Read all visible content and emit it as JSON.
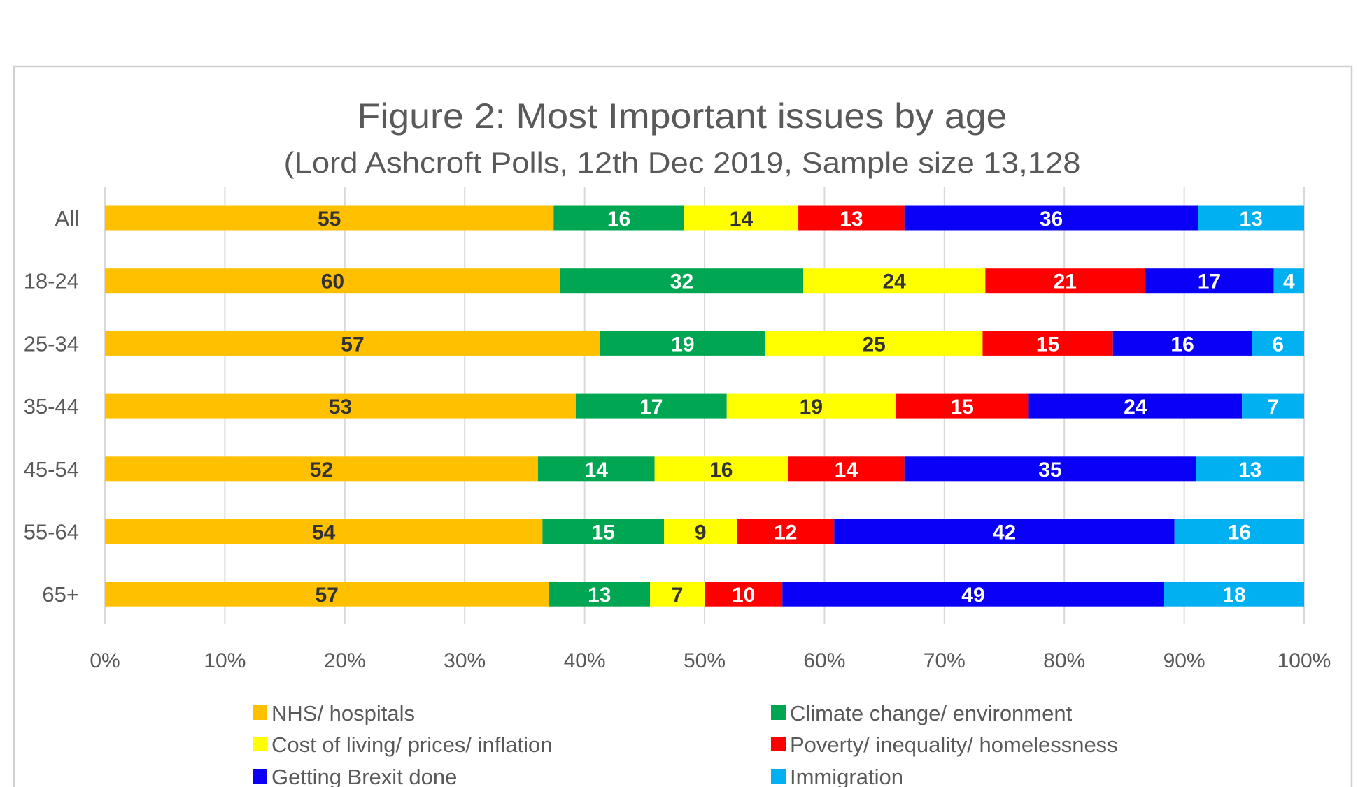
{
  "chart_data": {
    "type": "bar",
    "orientation": "horizontal",
    "stacking": "percent",
    "title": "Figure 2: Most Important issues by age",
    "subtitle": "(Lord Ashcroft Polls, 12th Dec 2019, Sample size 13,128",
    "xlabel": "",
    "ylabel": "",
    "xlim": [
      0,
      100
    ],
    "x_ticks": [
      "0%",
      "10%",
      "20%",
      "30%",
      "40%",
      "50%",
      "60%",
      "70%",
      "80%",
      "90%",
      "100%"
    ],
    "grid": true,
    "legend_position": "bottom",
    "categories": [
      "All",
      "18-24",
      "25-34",
      "35-44",
      "45-54",
      "55-64",
      "65+"
    ],
    "series": [
      {
        "name": "NHS/ hospitals",
        "color": "#FFC000",
        "label_color": "#333333",
        "values": [
          55,
          60,
          57,
          53,
          52,
          54,
          57
        ]
      },
      {
        "name": "Climate change/ environment",
        "color": "#00A651",
        "label_color": "#ffffff",
        "values": [
          16,
          32,
          19,
          17,
          14,
          15,
          13
        ]
      },
      {
        "name": "Cost of living/ prices/ inflation",
        "color": "#FFFF00",
        "label_color": "#333333",
        "values": [
          14,
          24,
          25,
          19,
          16,
          9,
          7
        ]
      },
      {
        "name": "Poverty/ inequality/ homelessness",
        "color": "#FF0000",
        "label_color": "#ffffff",
        "values": [
          13,
          21,
          15,
          15,
          14,
          12,
          10
        ]
      },
      {
        "name": "Getting Brexit done",
        "color": "#0A00F5",
        "label_color": "#ffffff",
        "values": [
          36,
          17,
          16,
          24,
          35,
          42,
          49
        ]
      },
      {
        "name": "Immigration",
        "color": "#00B0F0",
        "label_color": "#ffffff",
        "values": [
          13,
          4,
          6,
          7,
          13,
          16,
          18
        ]
      }
    ],
    "legend_order": [
      0,
      1,
      2,
      3,
      4,
      5
    ]
  }
}
